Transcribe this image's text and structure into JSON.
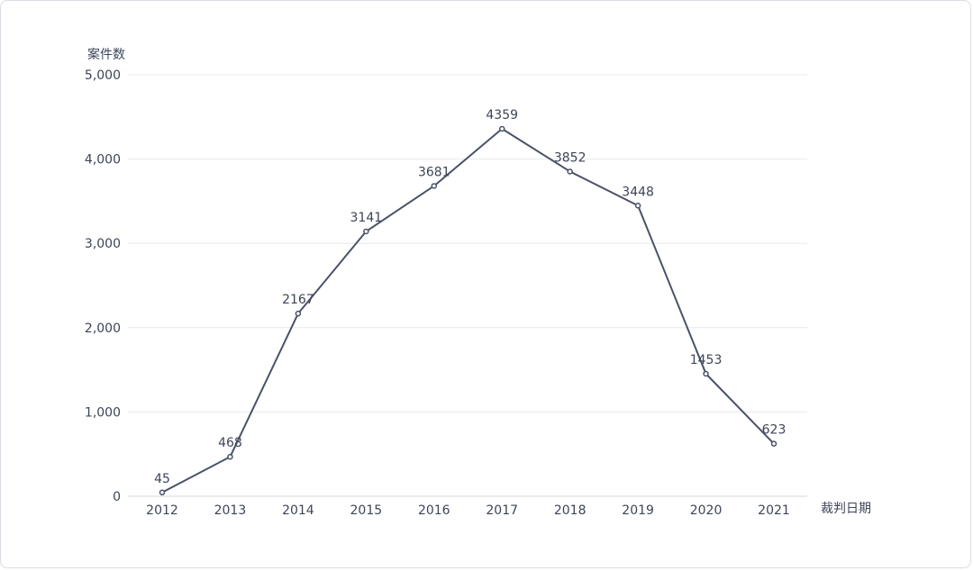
{
  "chart_data": {
    "type": "line",
    "title": "",
    "xlabel": "裁判日期",
    "ylabel": "案件数",
    "categories": [
      "2012",
      "2013",
      "2014",
      "2015",
      "2016",
      "2017",
      "2018",
      "2019",
      "2020",
      "2021"
    ],
    "series": [
      {
        "values": [
          45,
          468,
          2167,
          3141,
          3681,
          4359,
          3852,
          3448,
          1453,
          623
        ]
      }
    ],
    "data_labels": [
      "45",
      "468",
      "2167",
      "3141",
      "3681",
      "4359",
      "3852",
      "3448",
      "1453",
      "623"
    ],
    "ylim": [
      0,
      5000
    ],
    "yticks": [
      0,
      1000,
      2000,
      3000,
      4000,
      5000
    ],
    "ytick_labels": [
      "0",
      "1,000",
      "2,000",
      "3,000",
      "4,000",
      "5,000"
    ],
    "grid": true,
    "legend": "none",
    "line_color": "#4a5268"
  }
}
